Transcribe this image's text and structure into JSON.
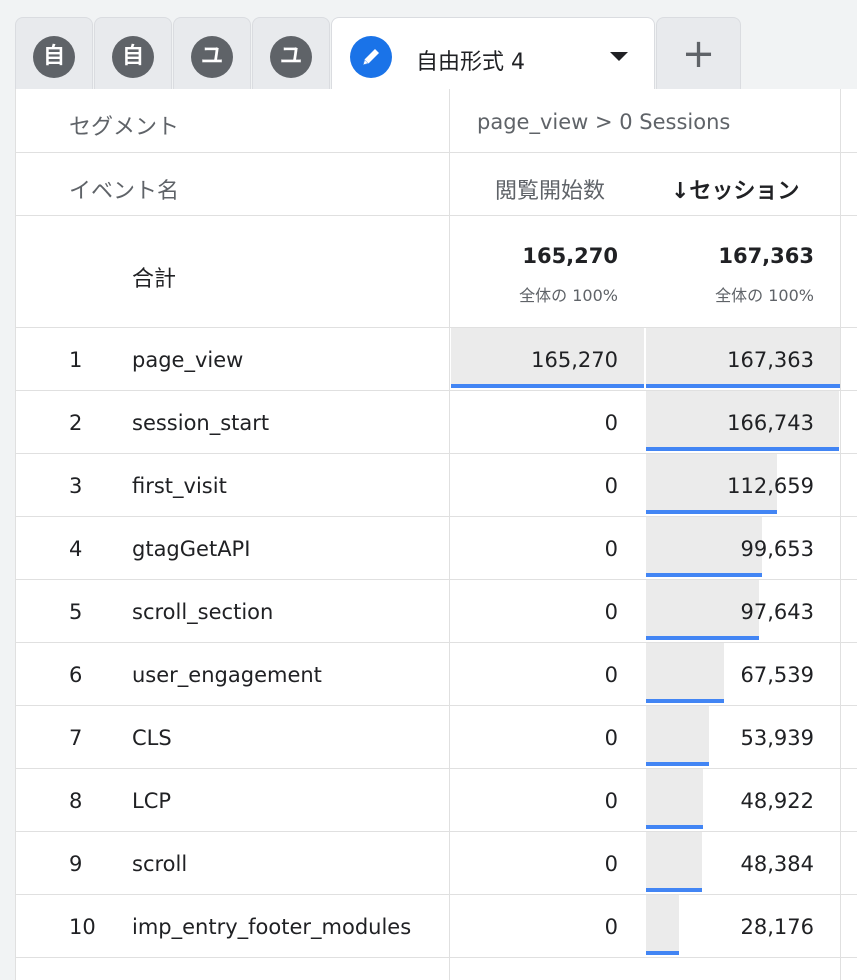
{
  "tabs": [
    {
      "icon_char": "自",
      "icon": "text-avatar"
    },
    {
      "icon_char": "自",
      "icon": "text-avatar"
    },
    {
      "icon_char": "ユ",
      "icon": "text-avatar"
    },
    {
      "icon_char": "ユ",
      "icon": "text-avatar"
    },
    {
      "label": "自由形式 4",
      "icon": "pencil-icon",
      "active": true
    }
  ],
  "add_tab": {
    "icon": "plus-icon"
  },
  "header": {
    "segment_label": "セグメント",
    "segment_value": "page_view > 0 Sessions",
    "dimension_label": "イベント名",
    "metric1_label": "閲覧開始数",
    "metric2_label": "↓セッション"
  },
  "totals": {
    "label": "合計",
    "metric1": "165,270",
    "metric1_pct": "全体の 100%",
    "metric2": "167,363",
    "metric2_pct": "全体の 100%"
  },
  "rows": [
    {
      "rank": "1",
      "name": "page_view",
      "metric1": "165,270",
      "metric2": "167,363",
      "m1_frac": 1.0,
      "m2_frac": 1.0
    },
    {
      "rank": "2",
      "name": "session_start",
      "metric1": "0",
      "metric2": "166,743",
      "m1_frac": 0,
      "m2_frac": 0.9963
    },
    {
      "rank": "3",
      "name": "first_visit",
      "metric1": "0",
      "metric2": "112,659",
      "m1_frac": 0,
      "m2_frac": 0.6731
    },
    {
      "rank": "4",
      "name": "gtagGetAPI",
      "metric1": "0",
      "metric2": "99,653",
      "m1_frac": 0,
      "m2_frac": 0.5954
    },
    {
      "rank": "5",
      "name": "scroll_section",
      "metric1": "0",
      "metric2": "97,643",
      "m1_frac": 0,
      "m2_frac": 0.5834
    },
    {
      "rank": "6",
      "name": "user_engagement",
      "metric1": "0",
      "metric2": "67,539",
      "m1_frac": 0,
      "m2_frac": 0.4035
    },
    {
      "rank": "7",
      "name": "CLS",
      "metric1": "0",
      "metric2": "53,939",
      "m1_frac": 0,
      "m2_frac": 0.3223
    },
    {
      "rank": "8",
      "name": "LCP",
      "metric1": "0",
      "metric2": "48,922",
      "m1_frac": 0,
      "m2_frac": 0.2923
    },
    {
      "rank": "9",
      "name": "scroll",
      "metric1": "0",
      "metric2": "48,384",
      "m1_frac": 0,
      "m2_frac": 0.2891
    },
    {
      "rank": "10",
      "name": "imp_entry_footer_modules",
      "metric1": "0",
      "metric2": "28,176",
      "m1_frac": 0,
      "m2_frac": 0.1683
    }
  ],
  "colors": {
    "bar_fill": "#ebebeb",
    "bar_accent": "#4285f4",
    "active_tab_icon": "#1a73e8",
    "inactive_tab_icon": "#5f6368"
  }
}
